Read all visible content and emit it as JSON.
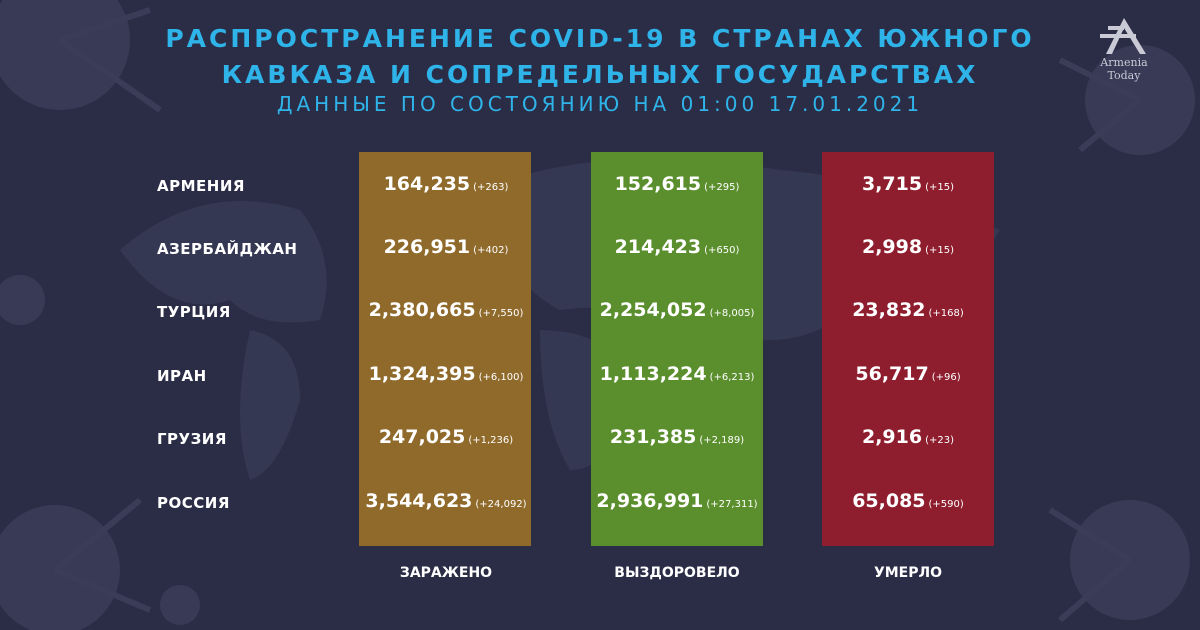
{
  "header": {
    "title_line1": "РАСПРОСТРАНЕНИЕ COVID-19 В СТРАНАХ ЮЖНОГО",
    "title_line2": "КАВКАЗА И СОПРЕДЕЛЬНЫХ ГОСУДАРСТВАХ",
    "subtitle": "ДАННЫЕ ПО СОСТОЯНИЮ НА 01:00  17.01.2021"
  },
  "logo": {
    "text": "Armenia Today"
  },
  "colors": {
    "infected": "#8f6a2b",
    "recovered": "#5b8e2d",
    "deaths": "#8e1d2e",
    "title": "#2fb4e9",
    "background": "#2b2d47"
  },
  "chart_data": {
    "type": "table",
    "columns": [
      "ЗАРАЖЕНО",
      "ВЫЗДОРОВЕЛО",
      "УМЕРЛО"
    ],
    "rows": [
      {
        "country": "АРМЕНИЯ",
        "infected": "164,235",
        "infected_delta": "(+263)",
        "recovered": "152,615",
        "recovered_delta": "(+295)",
        "deaths": "3,715",
        "deaths_delta": "(+15)"
      },
      {
        "country": "АЗЕРБАЙДЖАН",
        "infected": "226,951",
        "infected_delta": "(+402)",
        "recovered": "214,423",
        "recovered_delta": "(+650)",
        "deaths": "2,998",
        "deaths_delta": "(+15)"
      },
      {
        "country": "ТУРЦИЯ",
        "infected": "2,380,665",
        "infected_delta": "(+7,550)",
        "recovered": "2,254,052",
        "recovered_delta": "(+8,005)",
        "deaths": "23,832",
        "deaths_delta": "(+168)"
      },
      {
        "country": "ИРАН",
        "infected": "1,324,395",
        "infected_delta": "(+6,100)",
        "recovered": "1,113,224",
        "recovered_delta": "(+6,213)",
        "deaths": "56,717",
        "deaths_delta": "(+96)"
      },
      {
        "country": "ГРУЗИЯ",
        "infected": "247,025",
        "infected_delta": "(+1,236)",
        "recovered": "231,385",
        "recovered_delta": "(+2,189)",
        "deaths": "2,916",
        "deaths_delta": "(+23)"
      },
      {
        "country": "РОССИЯ",
        "infected": "3,544,623",
        "infected_delta": "(+24,092)",
        "recovered": "2,936,991",
        "recovered_delta": "(+27,311)",
        "deaths": "65,085",
        "deaths_delta": "(+590)"
      }
    ]
  }
}
